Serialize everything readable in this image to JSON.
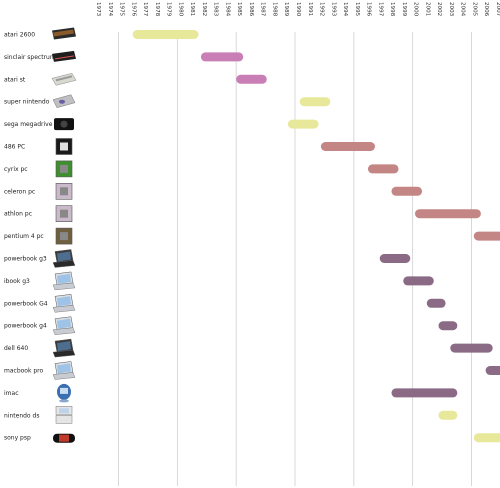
{
  "chart_data": {
    "type": "gantt",
    "x_axis": {
      "range": [
        1973,
        2007
      ],
      "ticks": [
        1973,
        1974,
        1975,
        1976,
        1977,
        1978,
        1979,
        1980,
        1981,
        1982,
        1983,
        1984,
        1985,
        1986,
        1987,
        1988,
        1989,
        1990,
        1991,
        1992,
        1993,
        1994,
        1995,
        1996,
        1997,
        1998,
        1999,
        2000,
        2001,
        2002,
        2003,
        2004,
        2005,
        2006,
        2007
      ],
      "tick_label_orientation": "vertical",
      "position": "top"
    },
    "grid": "vertical lines every 5 years",
    "items": [
      {
        "label": "atari 2600",
        "icon": "atari-2600-console-icon",
        "start": 1976.2,
        "end": 1981.8,
        "color": "#e8e89a"
      },
      {
        "label": "sinclair spectrum",
        "icon": "sinclair-spectrum-icon",
        "start": 1982.0,
        "end": 1985.6,
        "color": "#c97fb6"
      },
      {
        "label": "atari st",
        "icon": "atari-st-computer-icon",
        "start": 1985.0,
        "end": 1987.6,
        "color": "#c97fb6"
      },
      {
        "label": "super nintendo",
        "icon": "super-nintendo-icon",
        "start": 1990.4,
        "end": 1993.0,
        "color": "#e8e89a"
      },
      {
        "label": "sega megadrive",
        "icon": "sega-megadrive-icon",
        "start": 1989.4,
        "end": 1992.0,
        "color": "#e8e89a"
      },
      {
        "label": "486 PC",
        "icon": "486-processor-chip-icon",
        "start": 1992.2,
        "end": 1996.8,
        "color": "#c48585"
      },
      {
        "label": "cyrix pc",
        "icon": "cyrix-processor-chip-icon",
        "start": 1996.2,
        "end": 1998.8,
        "color": "#c48585"
      },
      {
        "label": "celeron  pc",
        "icon": "celeron-processor-chip-icon",
        "start": 1998.2,
        "end": 2000.8,
        "color": "#c48585"
      },
      {
        "label": "athlon pc",
        "icon": "athlon-processor-chip-icon",
        "start": 2000.2,
        "end": 2005.8,
        "color": "#c48585"
      },
      {
        "label": "pentium 4 pc",
        "icon": "pentium-4-chip-icon",
        "start": 2005.2,
        "end": 2007.9,
        "color": "#c48585"
      },
      {
        "label": "powerbook g3",
        "icon": "powerbook-g3-laptop-icon",
        "start": 1997.2,
        "end": 1999.8,
        "color": "#8a6a85"
      },
      {
        "label": "ibook g3",
        "icon": "ibook-g3-laptop-icon",
        "start": 1999.2,
        "end": 2001.8,
        "color": "#8a6a85"
      },
      {
        "label": "powerbook G4",
        "icon": "powerbook-g4-laptop-icon",
        "start": 2001.2,
        "end": 2002.8,
        "color": "#8a6a85"
      },
      {
        "label": "powerbook g4",
        "icon": "powerbook-g4-silver-laptop-icon",
        "start": 2002.2,
        "end": 2003.8,
        "color": "#8a6a85"
      },
      {
        "label": "dell 640",
        "icon": "dell-640-laptop-icon",
        "start": 2003.2,
        "end": 2006.8,
        "color": "#8a6a85"
      },
      {
        "label": "macbook pro",
        "icon": "macbook-pro-laptop-icon",
        "start": 2006.2,
        "end": 2007.8,
        "color": "#8a6a85"
      },
      {
        "label": "imac",
        "icon": "imac-computer-icon",
        "start": 1998.2,
        "end": 2003.8,
        "color": "#8a6a85"
      },
      {
        "label": "nintendo ds",
        "icon": "nintendo-ds-handheld-icon",
        "start": 2002.2,
        "end": 2003.8,
        "color": "#e8e89a"
      },
      {
        "label": "sony psp",
        "icon": "sony-psp-handheld-icon",
        "start": 2005.2,
        "end": 2007.9,
        "color": "#e8e89a"
      }
    ]
  }
}
